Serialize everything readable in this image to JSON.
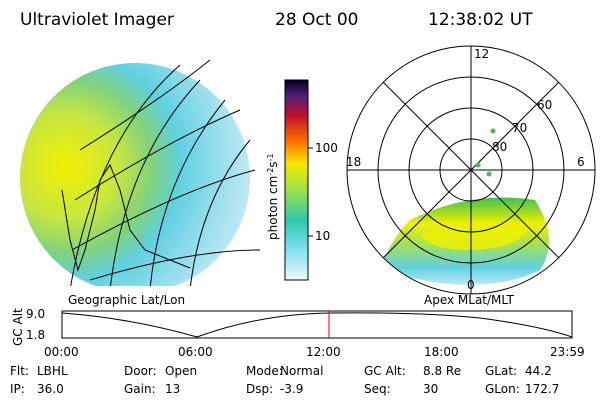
{
  "header": {
    "title": "Ultraviolet Imager",
    "date": "28 Oct 00",
    "time": "12:38:02 UT"
  },
  "colorbar": {
    "label": "photon cm",
    "exp1": "-2",
    "unit2": "s",
    "exp2": "-1",
    "ticks": [
      "100",
      "10"
    ]
  },
  "left_image": {
    "caption": "Geographic Lat/Lon"
  },
  "right_image": {
    "caption": "Apex MLat/MLT",
    "hours": [
      "12",
      "18",
      "6",
      "0"
    ],
    "latitudes": [
      "60",
      "70",
      "80"
    ]
  },
  "timeline": {
    "axis_label": "GC Alt",
    "y_ticks": [
      "9.0",
      "1.8"
    ],
    "x_ticks": [
      "00:00",
      "06:00",
      "12:00",
      "18:00",
      "23:59"
    ]
  },
  "footer": {
    "rows": [
      [
        {
          "label": "Flt:",
          "value": "LBHL"
        },
        {
          "label": "Door:",
          "value": "Open"
        },
        {
          "label": "Mode:",
          "value": "Normal"
        },
        {
          "label": "GC Alt:",
          "value": "8.8 Re"
        },
        {
          "label": "GLat:",
          "value": "44.2"
        }
      ],
      [
        {
          "label": "IP:",
          "value": "36.0"
        },
        {
          "label": "Gain:",
          "value": "13"
        },
        {
          "label": "Dsp:",
          "value": "-3.9"
        },
        {
          "label": "Seq:",
          "value": "30"
        },
        {
          "label": "GLon:",
          "value": "172.7"
        }
      ]
    ]
  }
}
